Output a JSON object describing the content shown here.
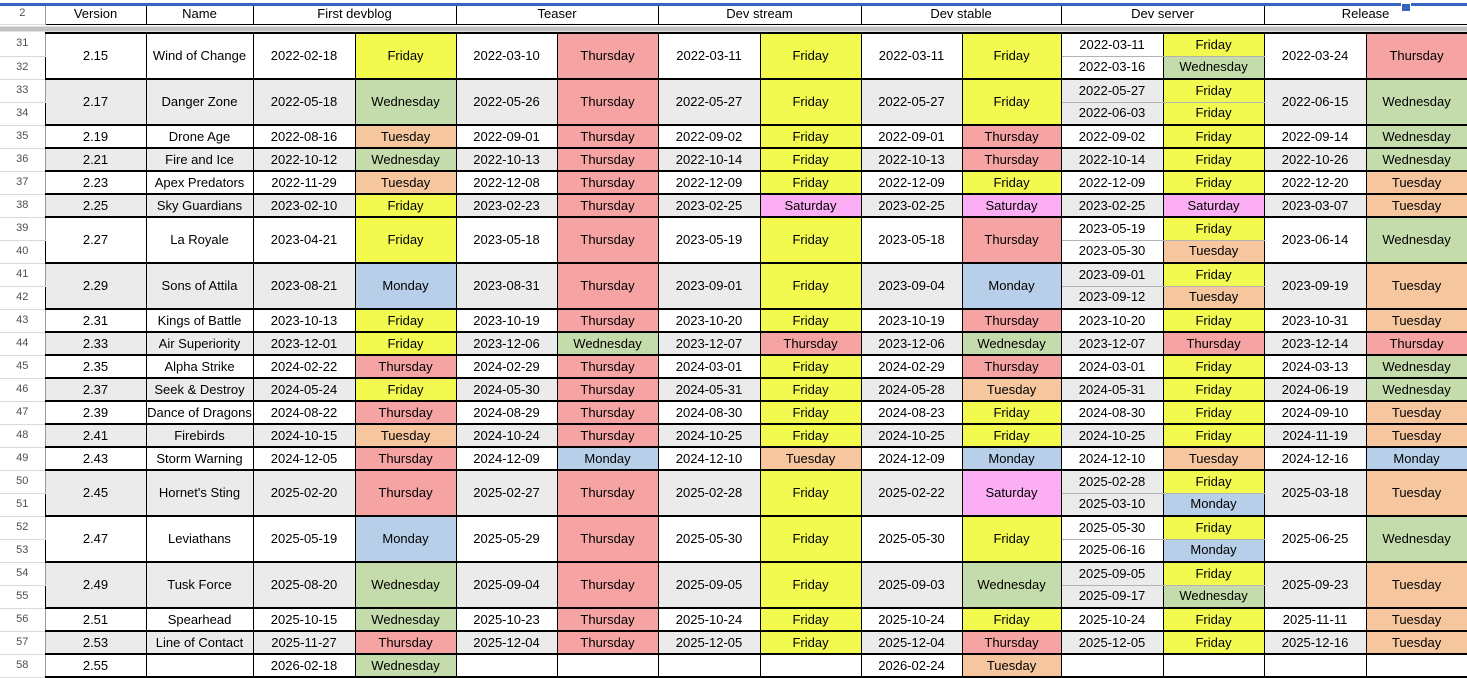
{
  "sheet": {
    "header_row_number": "2"
  },
  "columns": [
    {
      "label": "Version",
      "span": 1
    },
    {
      "label": "Name",
      "span": 1
    },
    {
      "label": "First devblog",
      "span": 2
    },
    {
      "label": "Teaser",
      "span": 2
    },
    {
      "label": "Dev stream",
      "span": 2
    },
    {
      "label": "Dev stable",
      "span": 2
    },
    {
      "label": "Dev server",
      "span": 2
    },
    {
      "label": "Release",
      "span": 2
    }
  ],
  "day_colors": {
    "Monday": "#b8cfe9",
    "Tuesday": "#f6c69e",
    "Wednesday": "#c4dcab",
    "Thursday": "#f5a3a3",
    "Friday": "#f2f94f",
    "Saturday": "#fbaef4"
  },
  "band_color": "#ebebeb",
  "selection_color": "#3565c0",
  "groups": [
    {
      "rows": [
        "31",
        "32"
      ],
      "version": "2.15",
      "name": "Wind of Change",
      "first_devblog": {
        "date": "2022-02-18",
        "day": "Friday"
      },
      "teaser": {
        "date": "2022-03-10",
        "day": "Thursday"
      },
      "dev_stream": {
        "date": "2022-03-11",
        "day": "Friday"
      },
      "dev_stable": {
        "date": "2022-03-11",
        "day": "Friday"
      },
      "dev_server": [
        {
          "date": "2022-03-11",
          "day": "Friday"
        },
        {
          "date": "2022-03-16",
          "day": "Wednesday"
        }
      ],
      "release": {
        "date": "2022-03-24",
        "day": "Thursday"
      }
    },
    {
      "rows": [
        "33",
        "34"
      ],
      "version": "2.17",
      "name": "Danger Zone",
      "first_devblog": {
        "date": "2022-05-18",
        "day": "Wednesday"
      },
      "teaser": {
        "date": "2022-05-26",
        "day": "Thursday"
      },
      "dev_stream": {
        "date": "2022-05-27",
        "day": "Friday"
      },
      "dev_stable": {
        "date": "2022-05-27",
        "day": "Friday"
      },
      "dev_server": [
        {
          "date": "2022-05-27",
          "day": "Friday"
        },
        {
          "date": "2022-06-03",
          "day": "Friday"
        }
      ],
      "release": {
        "date": "2022-06-15",
        "day": "Wednesday"
      }
    },
    {
      "rows": [
        "35"
      ],
      "version": "2.19",
      "name": "Drone Age",
      "first_devblog": {
        "date": "2022-08-16",
        "day": "Tuesday"
      },
      "teaser": {
        "date": "2022-09-01",
        "day": "Thursday"
      },
      "dev_stream": {
        "date": "2022-09-02",
        "day": "Friday"
      },
      "dev_stable": {
        "date": "2022-09-01",
        "day": "Thursday"
      },
      "dev_server": [
        {
          "date": "2022-09-02",
          "day": "Friday"
        }
      ],
      "release": {
        "date": "2022-09-14",
        "day": "Wednesday"
      }
    },
    {
      "rows": [
        "36"
      ],
      "version": "2.21",
      "name": "Fire and Ice",
      "first_devblog": {
        "date": "2022-10-12",
        "day": "Wednesday"
      },
      "teaser": {
        "date": "2022-10-13",
        "day": "Thursday"
      },
      "dev_stream": {
        "date": "2022-10-14",
        "day": "Friday"
      },
      "dev_stable": {
        "date": "2022-10-13",
        "day": "Thursday"
      },
      "dev_server": [
        {
          "date": "2022-10-14",
          "day": "Friday"
        }
      ],
      "release": {
        "date": "2022-10-26",
        "day": "Wednesday"
      }
    },
    {
      "rows": [
        "37"
      ],
      "version": "2.23",
      "name": "Apex Predators",
      "first_devblog": {
        "date": "2022-11-29",
        "day": "Tuesday"
      },
      "teaser": {
        "date": "2022-12-08",
        "day": "Thursday"
      },
      "dev_stream": {
        "date": "2022-12-09",
        "day": "Friday"
      },
      "dev_stable": {
        "date": "2022-12-09",
        "day": "Friday"
      },
      "dev_server": [
        {
          "date": "2022-12-09",
          "day": "Friday"
        }
      ],
      "release": {
        "date": "2022-12-20",
        "day": "Tuesday"
      }
    },
    {
      "rows": [
        "38"
      ],
      "version": "2.25",
      "name": "Sky Guardians",
      "first_devblog": {
        "date": "2023-02-10",
        "day": "Friday"
      },
      "teaser": {
        "date": "2023-02-23",
        "day": "Thursday"
      },
      "dev_stream": {
        "date": "2023-02-25",
        "day": "Saturday"
      },
      "dev_stable": {
        "date": "2023-02-25",
        "day": "Saturday"
      },
      "dev_server": [
        {
          "date": "2023-02-25",
          "day": "Saturday"
        }
      ],
      "release": {
        "date": "2023-03-07",
        "day": "Tuesday"
      }
    },
    {
      "rows": [
        "39",
        "40"
      ],
      "version": "2.27",
      "name": "La Royale",
      "first_devblog": {
        "date": "2023-04-21",
        "day": "Friday"
      },
      "teaser": {
        "date": "2023-05-18",
        "day": "Thursday"
      },
      "dev_stream": {
        "date": "2023-05-19",
        "day": "Friday"
      },
      "dev_stable": {
        "date": "2023-05-18",
        "day": "Thursday"
      },
      "dev_server": [
        {
          "date": "2023-05-19",
          "day": "Friday"
        },
        {
          "date": "2023-05-30",
          "day": "Tuesday"
        }
      ],
      "release": {
        "date": "2023-06-14",
        "day": "Wednesday"
      }
    },
    {
      "rows": [
        "41",
        "42"
      ],
      "version": "2.29",
      "name": "Sons of Attila",
      "first_devblog": {
        "date": "2023-08-21",
        "day": "Monday"
      },
      "teaser": {
        "date": "2023-08-31",
        "day": "Thursday"
      },
      "dev_stream": {
        "date": "2023-09-01",
        "day": "Friday"
      },
      "dev_stable": {
        "date": "2023-09-04",
        "day": "Monday"
      },
      "dev_server": [
        {
          "date": "2023-09-01",
          "day": "Friday"
        },
        {
          "date": "2023-09-12",
          "day": "Tuesday"
        }
      ],
      "release": {
        "date": "2023-09-19",
        "day": "Tuesday"
      }
    },
    {
      "rows": [
        "43"
      ],
      "version": "2.31",
      "name": "Kings of Battle",
      "first_devblog": {
        "date": "2023-10-13",
        "day": "Friday"
      },
      "teaser": {
        "date": "2023-10-19",
        "day": "Thursday"
      },
      "dev_stream": {
        "date": "2023-10-20",
        "day": "Friday"
      },
      "dev_stable": {
        "date": "2023-10-19",
        "day": "Thursday"
      },
      "dev_server": [
        {
          "date": "2023-10-20",
          "day": "Friday"
        }
      ],
      "release": {
        "date": "2023-10-31",
        "day": "Tuesday"
      }
    },
    {
      "rows": [
        "44"
      ],
      "version": "2.33",
      "name": "Air Superiority",
      "first_devblog": {
        "date": "2023-12-01",
        "day": "Friday"
      },
      "teaser": {
        "date": "2023-12-06",
        "day": "Wednesday"
      },
      "dev_stream": {
        "date": "2023-12-07",
        "day": "Thursday"
      },
      "dev_stable": {
        "date": "2023-12-06",
        "day": "Wednesday"
      },
      "dev_server": [
        {
          "date": "2023-12-07",
          "day": "Thursday"
        }
      ],
      "release": {
        "date": "2023-12-14",
        "day": "Thursday"
      }
    },
    {
      "rows": [
        "45"
      ],
      "version": "2.35",
      "name": "Alpha Strike",
      "first_devblog": {
        "date": "2024-02-22",
        "day": "Thursday"
      },
      "teaser": {
        "date": "2024-02-29",
        "day": "Thursday"
      },
      "dev_stream": {
        "date": "2024-03-01",
        "day": "Friday"
      },
      "dev_stable": {
        "date": "2024-02-29",
        "day": "Thursday"
      },
      "dev_server": [
        {
          "date": "2024-03-01",
          "day": "Friday"
        }
      ],
      "release": {
        "date": "2024-03-13",
        "day": "Wednesday"
      }
    },
    {
      "rows": [
        "46"
      ],
      "version": "2.37",
      "name": "Seek & Destroy",
      "first_devblog": {
        "date": "2024-05-24",
        "day": "Friday"
      },
      "teaser": {
        "date": "2024-05-30",
        "day": "Thursday"
      },
      "dev_stream": {
        "date": "2024-05-31",
        "day": "Friday"
      },
      "dev_stable": {
        "date": "2024-05-28",
        "day": "Tuesday"
      },
      "dev_server": [
        {
          "date": "2024-05-31",
          "day": "Friday"
        }
      ],
      "release": {
        "date": "2024-06-19",
        "day": "Wednesday"
      }
    },
    {
      "rows": [
        "47"
      ],
      "version": "2.39",
      "name": "Dance of Dragons",
      "first_devblog": {
        "date": "2024-08-22",
        "day": "Thursday"
      },
      "teaser": {
        "date": "2024-08-29",
        "day": "Thursday"
      },
      "dev_stream": {
        "date": "2024-08-30",
        "day": "Friday"
      },
      "dev_stable": {
        "date": "2024-08-23",
        "day": "Friday"
      },
      "dev_server": [
        {
          "date": "2024-08-30",
          "day": "Friday"
        }
      ],
      "release": {
        "date": "2024-09-10",
        "day": "Tuesday"
      }
    },
    {
      "rows": [
        "48"
      ],
      "version": "2.41",
      "name": "Firebirds",
      "first_devblog": {
        "date": "2024-10-15",
        "day": "Tuesday"
      },
      "teaser": {
        "date": "2024-10-24",
        "day": "Thursday"
      },
      "dev_stream": {
        "date": "2024-10-25",
        "day": "Friday"
      },
      "dev_stable": {
        "date": "2024-10-25",
        "day": "Friday"
      },
      "dev_server": [
        {
          "date": "2024-10-25",
          "day": "Friday"
        }
      ],
      "release": {
        "date": "2024-11-19",
        "day": "Tuesday"
      }
    },
    {
      "rows": [
        "49"
      ],
      "version": "2.43",
      "name": "Storm Warning",
      "first_devblog": {
        "date": "2024-12-05",
        "day": "Thursday"
      },
      "teaser": {
        "date": "2024-12-09",
        "day": "Monday"
      },
      "dev_stream": {
        "date": "2024-12-10",
        "day": "Tuesday"
      },
      "dev_stable": {
        "date": "2024-12-09",
        "day": "Monday"
      },
      "dev_server": [
        {
          "date": "2024-12-10",
          "day": "Tuesday"
        }
      ],
      "release": {
        "date": "2024-12-16",
        "day": "Monday"
      }
    },
    {
      "rows": [
        "50",
        "51"
      ],
      "version": "2.45",
      "name": "Hornet's Sting",
      "first_devblog": {
        "date": "2025-02-20",
        "day": "Thursday"
      },
      "teaser": {
        "date": "2025-02-27",
        "day": "Thursday"
      },
      "dev_stream": {
        "date": "2025-02-28",
        "day": "Friday"
      },
      "dev_stable": {
        "date": "2025-02-22",
        "day": "Saturday"
      },
      "dev_server": [
        {
          "date": "2025-02-28",
          "day": "Friday"
        },
        {
          "date": "2025-03-10",
          "day": "Monday"
        }
      ],
      "release": {
        "date": "2025-03-18",
        "day": "Tuesday"
      }
    },
    {
      "rows": [
        "52",
        "53"
      ],
      "version": "2.47",
      "name": "Leviathans",
      "first_devblog": {
        "date": "2025-05-19",
        "day": "Monday"
      },
      "teaser": {
        "date": "2025-05-29",
        "day": "Thursday"
      },
      "dev_stream": {
        "date": "2025-05-30",
        "day": "Friday"
      },
      "dev_stable": {
        "date": "2025-05-30",
        "day": "Friday"
      },
      "dev_server": [
        {
          "date": "2025-05-30",
          "day": "Friday"
        },
        {
          "date": "2025-06-16",
          "day": "Monday"
        }
      ],
      "release": {
        "date": "2025-06-25",
        "day": "Wednesday"
      }
    },
    {
      "rows": [
        "54",
        "55"
      ],
      "version": "2.49",
      "name": "Tusk Force",
      "first_devblog": {
        "date": "2025-08-20",
        "day": "Wednesday"
      },
      "teaser": {
        "date": "2025-09-04",
        "day": "Thursday"
      },
      "dev_stream": {
        "date": "2025-09-05",
        "day": "Friday"
      },
      "dev_stable": {
        "date": "2025-09-03",
        "day": "Wednesday"
      },
      "dev_server": [
        {
          "date": "2025-09-05",
          "day": "Friday"
        },
        {
          "date": "2025-09-17",
          "day": "Wednesday"
        }
      ],
      "release": {
        "date": "2025-09-23",
        "day": "Tuesday"
      }
    },
    {
      "rows": [
        "56"
      ],
      "version": "2.51",
      "name": "Spearhead",
      "first_devblog": {
        "date": "2025-10-15",
        "day": "Wednesday"
      },
      "teaser": {
        "date": "2025-10-23",
        "day": "Thursday"
      },
      "dev_stream": {
        "date": "2025-10-24",
        "day": "Friday"
      },
      "dev_stable": {
        "date": "2025-10-24",
        "day": "Friday"
      },
      "dev_server": [
        {
          "date": "2025-10-24",
          "day": "Friday"
        }
      ],
      "release": {
        "date": "2025-11-11",
        "day": "Tuesday"
      }
    },
    {
      "rows": [
        "57"
      ],
      "version": "2.53",
      "name": "Line of Contact",
      "first_devblog": {
        "date": "2025-11-27",
        "day": "Thursday"
      },
      "teaser": {
        "date": "2025-12-04",
        "day": "Thursday"
      },
      "dev_stream": {
        "date": "2025-12-05",
        "day": "Friday"
      },
      "dev_stable": {
        "date": "2025-12-04",
        "day": "Thursday"
      },
      "dev_server": [
        {
          "date": "2025-12-05",
          "day": "Friday"
        }
      ],
      "release": {
        "date": "2025-12-16",
        "day": "Tuesday"
      }
    },
    {
      "rows": [
        "58"
      ],
      "version": "2.55",
      "name": "",
      "first_devblog": {
        "date": "2026-02-18",
        "day": "Wednesday"
      },
      "teaser": {
        "date": "",
        "day": ""
      },
      "dev_stream": {
        "date": "",
        "day": ""
      },
      "dev_stable": {
        "date": "2026-02-24",
        "day": "Tuesday"
      },
      "dev_server": [],
      "release": {
        "date": "",
        "day": ""
      }
    }
  ]
}
